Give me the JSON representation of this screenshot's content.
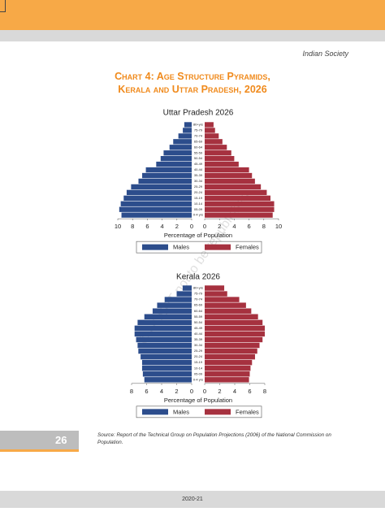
{
  "page": {
    "running_head": "Indian Society",
    "title_lines": [
      "Chart 4: Age Structure Pyramids,",
      "Kerala and Uttar Pradesh, 2026"
    ],
    "watermark": "© NCERT not to be republished",
    "page_number": "26",
    "source": "Source: Report of the Technical Group on Population Projections (2006) of the National Commission on Population.",
    "footer": "2020-21"
  },
  "chart_data": [
    {
      "type": "pyramid",
      "title": "Uttar Pradesh 2026",
      "categories": [
        "0-4 yrs",
        "05-09",
        "10-14",
        "15-19",
        "20-24",
        "25-29",
        "30-34",
        "35-39",
        "40-44",
        "45-49",
        "50-54",
        "55-59",
        "60-64",
        "65-69",
        "70-74",
        "75-79",
        "80+yrs"
      ],
      "series": [
        {
          "name": "Males",
          "color": "#2c4d8c",
          "values": [
            9.5,
            9.8,
            9.6,
            9.2,
            8.8,
            8.2,
            7.2,
            6.7,
            6.2,
            4.8,
            4.2,
            3.8,
            3.0,
            2.5,
            1.8,
            1.2,
            1.0
          ]
        },
        {
          "name": "Females",
          "color": "#a6313f",
          "values": [
            9.2,
            9.4,
            9.4,
            8.9,
            8.4,
            7.6,
            6.8,
            6.4,
            6.0,
            4.6,
            4.0,
            3.6,
            3.0,
            2.4,
            1.9,
            1.4,
            1.2
          ]
        }
      ],
      "xlim": [
        0,
        10
      ],
      "xticks": [
        0,
        2,
        4,
        6,
        8,
        10
      ],
      "xlabel": "Percentage of Population"
    },
    {
      "type": "pyramid",
      "title": "Kerala 2026",
      "categories": [
        "0-4 yrs",
        "05-09",
        "10-14",
        "15-19",
        "20-24",
        "25-29",
        "30-34",
        "35-39",
        "40-44",
        "45-49",
        "50-54",
        "55-59",
        "60-64",
        "65-69",
        "70-74",
        "75-79",
        "80+yrs"
      ],
      "series": [
        {
          "name": "Males",
          "color": "#2c4d8c",
          "values": [
            6.3,
            6.5,
            6.6,
            6.6,
            6.8,
            7.1,
            7.2,
            7.4,
            7.6,
            7.6,
            7.2,
            6.3,
            5.2,
            4.6,
            3.6,
            2.0,
            1.2
          ]
        },
        {
          "name": "Females",
          "color": "#a6313f",
          "values": [
            5.9,
            6.0,
            6.1,
            6.3,
            6.7,
            7.0,
            7.3,
            7.7,
            8.0,
            8.0,
            7.7,
            7.1,
            6.2,
            5.5,
            4.6,
            3.0,
            2.6
          ]
        }
      ],
      "xlim": [
        0,
        8
      ],
      "xticks": [
        0,
        2,
        4,
        6,
        8
      ],
      "xlabel": "Percentage of Population"
    }
  ]
}
